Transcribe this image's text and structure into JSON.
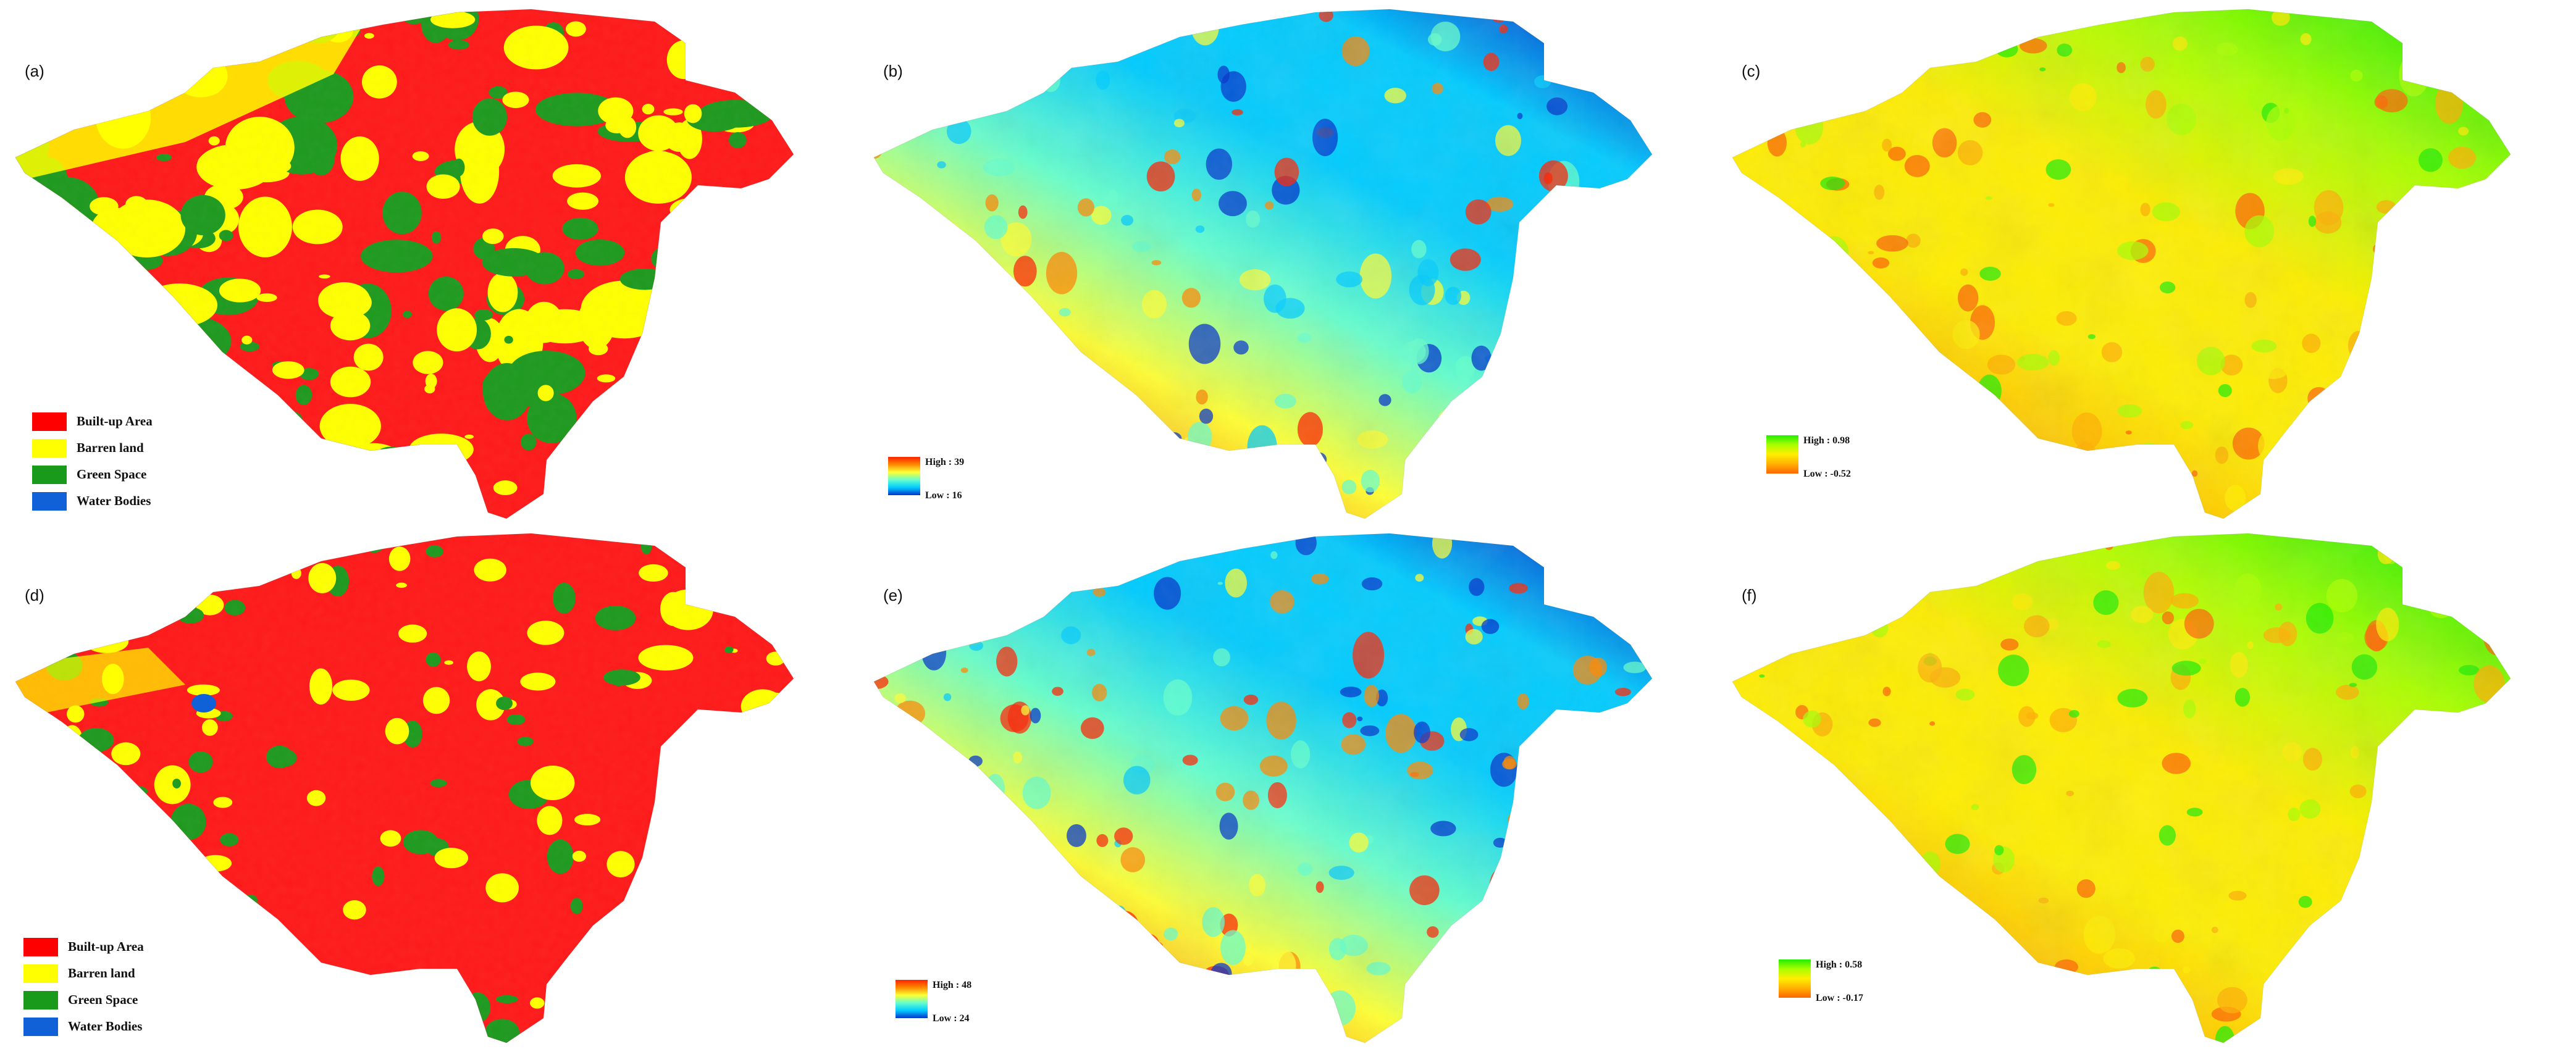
{
  "panels": [
    {
      "label": "(a)",
      "type": "landcover",
      "palette": [
        "#ff1a1a",
        "#ffff00",
        "#1f9a1f"
      ]
    },
    {
      "label": "(b)",
      "type": "lst",
      "palette": [
        "#0033cc",
        "#00ccff",
        "#66ffcc",
        "#ffff33",
        "#ff8800",
        "#ff2200"
      ]
    },
    {
      "label": "(c)",
      "type": "ndvi",
      "palette": [
        "#ff6600",
        "#ffb000",
        "#ffee00",
        "#aaff00",
        "#22ee00"
      ]
    },
    {
      "label": "(d)",
      "type": "landcover",
      "palette": [
        "#ff1a1a",
        "#ffff00",
        "#1f9a1f"
      ]
    },
    {
      "label": "(e)",
      "type": "lst",
      "palette": [
        "#0033cc",
        "#00ccff",
        "#66ffcc",
        "#ffff33",
        "#ff8800",
        "#ff2200"
      ]
    },
    {
      "label": "(f)",
      "type": "ndvi",
      "palette": [
        "#ff6600",
        "#ffb000",
        "#ffee00",
        "#aaff00",
        "#22ee00"
      ]
    }
  ],
  "landcover_legend": [
    {
      "label": "Built-up Area",
      "color": "#ff0000"
    },
    {
      "label": "Barren land",
      "color": "#ffff00"
    },
    {
      "label": "Green Space",
      "color": "#1a9a1a"
    },
    {
      "label": "Water Bodies",
      "color": "#1060d8"
    }
  ],
  "legends": {
    "b": {
      "high": "High : 39",
      "low": "Low : 16"
    },
    "c": {
      "high": "High : 0.98",
      "low": "Low : -0.52"
    },
    "e": {
      "high": "High : 48",
      "low": "Low : 24"
    },
    "f": {
      "high": "High : 0.58",
      "low": "Low : -0.17"
    }
  }
}
